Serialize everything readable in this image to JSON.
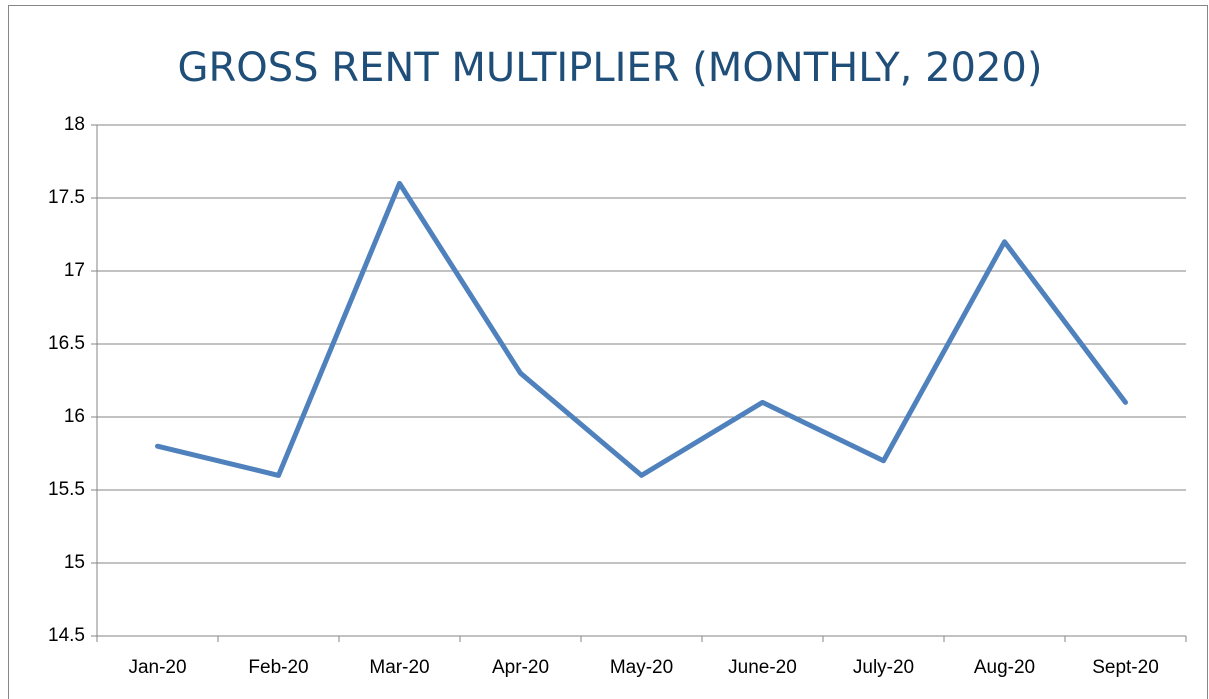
{
  "chart_data": {
    "type": "line",
    "title": "GROSS RENT MULTIPLIER (MONTHLY, 2020)",
    "categories": [
      "Jan-20",
      "Feb-20",
      "Mar-20",
      "Apr-20",
      "May-20",
      "June-20",
      "July-20",
      "Aug-20",
      "Sept-20"
    ],
    "values": [
      15.8,
      15.6,
      17.6,
      16.3,
      15.6,
      16.1,
      15.7,
      17.2,
      16.1
    ],
    "color": "#4f81bd",
    "ylim": [
      14.5,
      18
    ],
    "yticks": [
      14.5,
      15,
      15.5,
      16,
      16.5,
      17,
      17.5,
      18
    ],
    "grid": true
  }
}
